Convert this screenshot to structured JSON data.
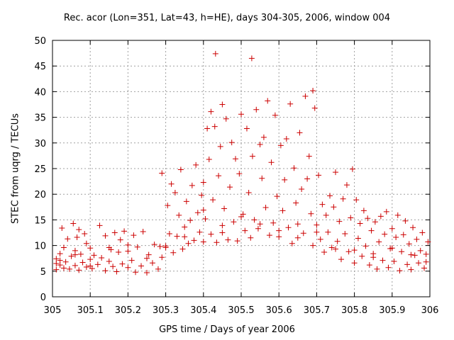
{
  "chart_data": {
    "type": "scatter",
    "title": "Rec. acor (Lon=351, Lat=43, h=HE), days 304-305, 2006, window 004",
    "xlabel": "GPS time / Days of year 2006",
    "ylabel": "STEC from uqrg / TECUs",
    "xlim": [
      305,
      306
    ],
    "ylim": [
      0,
      50
    ],
    "xticks": [
      "305",
      "305.1",
      "305.2",
      "305.3",
      "305.4",
      "305.5",
      "305.6",
      "305.7",
      "305.8",
      "305.9",
      "306"
    ],
    "yticks": [
      "0",
      "5",
      "10",
      "15",
      "20",
      "25",
      "30",
      "35",
      "40",
      "45",
      "50"
    ],
    "grid": true,
    "marker": "+",
    "color": "#cc0000",
    "points": [
      [
        305.01,
        5.3
      ],
      [
        305.01,
        6.5
      ],
      [
        305.01,
        7.4
      ],
      [
        305.02,
        6.2
      ],
      [
        305.02,
        8.4
      ],
      [
        305.025,
        13.4
      ],
      [
        305.03,
        5.6
      ],
      [
        305.03,
        9.6
      ],
      [
        305.035,
        6.8
      ],
      [
        305.04,
        11.3
      ],
      [
        305.045,
        5.4
      ],
      [
        305.05,
        7.9
      ],
      [
        305.055,
        14.3
      ],
      [
        305.06,
        6.1
      ],
      [
        305.06,
        9.0
      ],
      [
        305.065,
        11.6
      ],
      [
        305.07,
        5.2
      ],
      [
        305.07,
        13.1
      ],
      [
        305.075,
        8.3
      ],
      [
        305.08,
        6.7
      ],
      [
        305.085,
        12.3
      ],
      [
        305.09,
        5.8
      ],
      [
        305.09,
        10.4
      ],
      [
        305.1,
        7.3
      ],
      [
        305.1,
        9.5
      ],
      [
        305.105,
        5.5
      ],
      [
        305.11,
        8.1
      ],
      [
        305.12,
        6.3
      ],
      [
        305.125,
        13.9
      ],
      [
        305.13,
        7.6
      ],
      [
        305.14,
        5.1
      ],
      [
        305.14,
        11.9
      ],
      [
        305.15,
        6.9
      ],
      [
        305.155,
        9.2
      ],
      [
        305.16,
        5.9
      ],
      [
        305.165,
        12.5
      ],
      [
        305.17,
        4.9
      ],
      [
        305.175,
        8.7
      ],
      [
        305.18,
        11.1
      ],
      [
        305.185,
        6.4
      ],
      [
        305.19,
        12.8
      ],
      [
        305.2,
        5.7
      ],
      [
        305.2,
        10.1
      ],
      [
        305.21,
        7.1
      ],
      [
        305.215,
        12.0
      ],
      [
        305.22,
        4.8
      ],
      [
        305.225,
        9.7
      ],
      [
        305.235,
        6.0
      ],
      [
        305.24,
        12.7
      ],
      [
        305.25,
        4.7
      ],
      [
        305.255,
        8.2
      ],
      [
        305.265,
        6.6
      ],
      [
        305.27,
        10.2
      ],
      [
        305.28,
        5.4
      ],
      [
        305.285,
        9.8
      ],
      [
        305.29,
        7.7
      ],
      [
        305.29,
        24.1
      ],
      [
        305.3,
        9.9
      ],
      [
        305.305,
        17.8
      ],
      [
        305.31,
        12.3
      ],
      [
        305.315,
        22.0
      ],
      [
        305.32,
        8.6
      ],
      [
        305.325,
        20.3
      ],
      [
        305.33,
        11.8
      ],
      [
        305.335,
        15.9
      ],
      [
        305.34,
        24.8
      ],
      [
        305.345,
        9.3
      ],
      [
        305.35,
        13.6
      ],
      [
        305.355,
        18.6
      ],
      [
        305.36,
        10.4
      ],
      [
        305.365,
        14.9
      ],
      [
        305.37,
        21.7
      ],
      [
        305.375,
        11.0
      ],
      [
        305.38,
        25.7
      ],
      [
        305.385,
        16.4
      ],
      [
        305.39,
        12.6
      ],
      [
        305.395,
        19.8
      ],
      [
        305.4,
        10.7
      ],
      [
        305.4,
        22.3
      ],
      [
        305.405,
        15.2
      ],
      [
        305.41,
        32.8
      ],
      [
        305.415,
        26.8
      ],
      [
        305.42,
        12.2
      ],
      [
        305.42,
        36.1
      ],
      [
        305.425,
        18.9
      ],
      [
        305.43,
        33.2
      ],
      [
        305.432,
        47.4
      ],
      [
        305.435,
        10.6
      ],
      [
        305.44,
        23.6
      ],
      [
        305.445,
        29.3
      ],
      [
        305.45,
        37.5
      ],
      [
        305.45,
        13.9
      ],
      [
        305.455,
        17.2
      ],
      [
        305.46,
        34.7
      ],
      [
        305.465,
        11.1
      ],
      [
        305.47,
        21.4
      ],
      [
        305.475,
        30.1
      ],
      [
        305.48,
        14.6
      ],
      [
        305.485,
        26.9
      ],
      [
        305.49,
        10.9
      ],
      [
        305.495,
        24.0
      ],
      [
        305.5,
        35.6
      ],
      [
        305.505,
        16.1
      ],
      [
        305.51,
        12.9
      ],
      [
        305.515,
        32.8
      ],
      [
        305.52,
        20.3
      ],
      [
        305.525,
        11.5
      ],
      [
        305.528,
        46.5
      ],
      [
        305.53,
        27.4
      ],
      [
        305.535,
        15.0
      ],
      [
        305.54,
        36.5
      ],
      [
        305.545,
        13.3
      ],
      [
        305.55,
        29.7
      ],
      [
        305.555,
        23.1
      ],
      [
        305.56,
        31.1
      ],
      [
        305.565,
        17.4
      ],
      [
        305.57,
        38.2
      ],
      [
        305.575,
        12.0
      ],
      [
        305.58,
        26.2
      ],
      [
        305.585,
        14.4
      ],
      [
        305.59,
        35.4
      ],
      [
        305.595,
        19.6
      ],
      [
        305.6,
        11.7
      ],
      [
        305.605,
        29.5
      ],
      [
        305.61,
        16.8
      ],
      [
        305.615,
        22.8
      ],
      [
        305.62,
        30.8
      ],
      [
        305.625,
        13.5
      ],
      [
        305.63,
        37.6
      ],
      [
        305.635,
        10.4
      ],
      [
        305.64,
        25.1
      ],
      [
        305.645,
        18.3
      ],
      [
        305.65,
        14.2
      ],
      [
        305.655,
        32.0
      ],
      [
        305.66,
        21.0
      ],
      [
        305.665,
        12.4
      ],
      [
        305.67,
        39.1
      ],
      [
        305.675,
        23.0
      ],
      [
        305.68,
        27.4
      ],
      [
        305.685,
        16.2
      ],
      [
        305.69,
        40.2
      ],
      [
        305.69,
        10.0
      ],
      [
        305.695,
        36.8
      ],
      [
        305.7,
        14.0
      ],
      [
        305.705,
        23.7
      ],
      [
        305.71,
        11.2
      ],
      [
        305.715,
        18.0
      ],
      [
        305.72,
        8.7
      ],
      [
        305.725,
        15.9
      ],
      [
        305.73,
        12.6
      ],
      [
        305.735,
        19.7
      ],
      [
        305.74,
        9.6
      ],
      [
        305.745,
        17.5
      ],
      [
        305.75,
        24.3
      ],
      [
        305.755,
        10.8
      ],
      [
        305.76,
        14.7
      ],
      [
        305.765,
        7.3
      ],
      [
        305.77,
        19.1
      ],
      [
        305.775,
        12.3
      ],
      [
        305.78,
        21.8
      ],
      [
        305.785,
        8.8
      ],
      [
        305.79,
        15.4
      ],
      [
        305.795,
        24.9
      ],
      [
        305.8,
        6.6
      ],
      [
        305.805,
        18.9
      ],
      [
        305.81,
        11.4
      ],
      [
        305.815,
        14.3
      ],
      [
        305.82,
        7.9
      ],
      [
        305.825,
        16.8
      ],
      [
        305.83,
        9.9
      ],
      [
        305.835,
        15.3
      ],
      [
        305.84,
        6.2
      ],
      [
        305.845,
        12.9
      ],
      [
        305.85,
        8.4
      ],
      [
        305.855,
        14.6
      ],
      [
        305.86,
        5.4
      ],
      [
        305.865,
        10.7
      ],
      [
        305.87,
        15.7
      ],
      [
        305.875,
        7.1
      ],
      [
        305.88,
        12.2
      ],
      [
        305.885,
        16.6
      ],
      [
        305.89,
        5.7
      ],
      [
        305.895,
        9.4
      ],
      [
        305.9,
        13.3
      ],
      [
        305.905,
        6.9
      ],
      [
        305.91,
        11.6
      ],
      [
        305.915,
        15.9
      ],
      [
        305.92,
        5.1
      ],
      [
        305.925,
        8.8
      ],
      [
        305.93,
        12.1
      ],
      [
        305.935,
        14.8
      ],
      [
        305.94,
        6.3
      ],
      [
        305.945,
        10.3
      ],
      [
        305.95,
        5.3
      ],
      [
        305.955,
        13.5
      ],
      [
        305.96,
        8.1
      ],
      [
        305.965,
        11.2
      ],
      [
        305.97,
        6.6
      ],
      [
        305.975,
        9.0
      ],
      [
        305.98,
        12.5
      ],
      [
        305.985,
        5.6
      ],
      [
        305.99,
        8.3
      ],
      [
        305.995,
        10.7
      ],
      [
        305.02,
        7.1
      ],
      [
        305.06,
        8.2
      ],
      [
        305.1,
        6.0
      ],
      [
        305.15,
        9.6
      ],
      [
        305.2,
        8.9
      ],
      [
        305.25,
        7.5
      ],
      [
        305.3,
        9.6
      ],
      [
        305.35,
        11.7
      ],
      [
        305.4,
        16.9
      ],
      [
        305.45,
        12.5
      ],
      [
        305.5,
        15.6
      ],
      [
        305.55,
        14.2
      ],
      [
        305.6,
        12.9
      ],
      [
        305.65,
        11.5
      ],
      [
        305.7,
        12.6
      ],
      [
        305.75,
        9.3
      ],
      [
        305.8,
        9.1
      ],
      [
        305.85,
        7.7
      ],
      [
        305.9,
        9.5
      ],
      [
        305.95,
        8.2
      ],
      [
        305.99,
        6.8
      ]
    ]
  }
}
